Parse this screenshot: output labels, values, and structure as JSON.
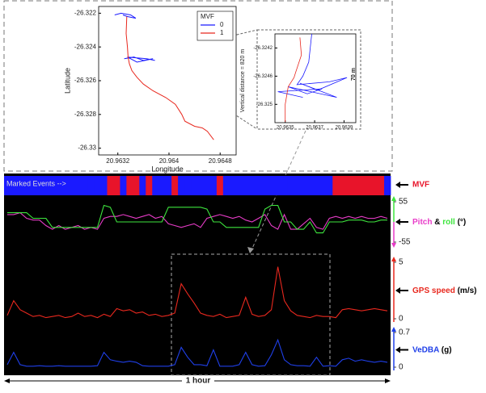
{
  "chart_data": [
    {
      "type": "track",
      "xlabel": "Longitude",
      "ylabel": "Latitude",
      "legend_title": "MVF",
      "xlim": [
        20.9629,
        20.96505
      ],
      "ylim": [
        -26.3304,
        -26.3216
      ],
      "xticks": [
        20.9632,
        20.964,
        20.9648
      ],
      "yticks": [
        -26.322,
        -26.324,
        -26.326,
        -26.328,
        -26.33
      ],
      "annotation": "Vertical distance = 820 m",
      "series": [
        {
          "name": "0",
          "color": "#1a1aff",
          "x": [
            20.96315,
            20.96325,
            20.9634,
            20.96348,
            20.96335,
            20.96328,
            null,
            20.9633,
            20.96345,
            20.9636,
            20.96375,
            20.9635,
            20.96335,
            20.96365,
            20.96378
          ],
          "values": [
            -26.3221,
            -26.322,
            -26.3221,
            -26.3223,
            -26.3222,
            -26.3221,
            null,
            -26.3247,
            -26.3246,
            -26.3248,
            -26.3247,
            -26.3249,
            -26.3246,
            -26.3247,
            -26.3248
          ]
        },
        {
          "name": "1",
          "color": "#e8281e",
          "x": [
            20.96334,
            20.96333,
            20.96335,
            20.96336,
            20.96338,
            20.96342,
            20.9635,
            20.9636,
            20.96375,
            20.96395,
            20.9641,
            20.9642,
            20.96425,
            20.9644,
            20.96452,
            20.9646,
            20.9647
          ],
          "values": [
            -26.3222,
            -26.3232,
            -26.324,
            -26.3246,
            -26.325,
            -26.3254,
            -26.3258,
            -26.3262,
            -26.3266,
            -26.327,
            -26.3274,
            -26.328,
            -26.3284,
            -26.3287,
            -26.3288,
            -26.329,
            -26.3295
          ]
        }
      ]
    },
    {
      "type": "track",
      "xlim": [
        20.96343,
        20.96398
      ],
      "ylim": [
        -26.32526,
        -26.324
      ],
      "xticks": [
        20.9635,
        20.9637,
        20.9639
      ],
      "yticks": [
        -26.3242,
        -26.3246,
        -26.325
      ],
      "annotation": "70 m",
      "series": [
        {
          "name": "0",
          "color": "#1a1aff",
          "x": [
            20.96368,
            20.96366,
            20.96362,
            20.96358,
            20.9638,
            20.96392,
            20.96372,
            20.9636,
            20.96385,
            20.96352,
            20.96365,
            20.96375,
            20.96345,
            20.96362
          ],
          "values": [
            -26.324,
            -26.3244,
            -26.3246,
            -26.32472,
            -26.32468,
            -26.32462,
            -26.3248,
            -26.3247,
            -26.3249,
            -26.32475,
            -26.32485,
            -26.32478,
            -26.32482,
            -26.3249
          ]
        },
        {
          "name": "1",
          "color": "#e8281e",
          "x": [
            20.9636,
            20.96361,
            20.96357,
            20.96356,
            20.96352,
            20.9635,
            20.9635
          ],
          "values": [
            -26.32405,
            -26.3243,
            -26.32455,
            -26.32462,
            -26.32475,
            -26.325,
            -26.32525
          ]
        }
      ]
    },
    {
      "type": "events",
      "label": "MVF",
      "annotation": "Marked Events -->",
      "colors": [
        "#1a1aff",
        "#e8142a"
      ],
      "values": [
        0,
        0,
        0,
        0,
        0,
        0,
        0,
        0,
        0,
        0,
        0,
        0,
        0,
        0,
        0,
        0,
        1,
        1,
        0,
        1,
        1,
        0,
        1,
        0,
        0,
        0,
        1,
        0,
        0,
        0,
        0,
        0,
        0,
        1,
        0,
        0,
        0,
        0,
        0,
        0,
        0,
        0,
        0,
        0,
        0,
        0,
        0,
        0,
        0,
        0,
        0,
        1,
        1,
        1,
        1,
        1,
        1,
        1,
        1,
        0
      ]
    },
    {
      "type": "line",
      "joiner": "&",
      "unit": "(°)",
      "ylim": [
        -55,
        55
      ],
      "yticks": [
        -55,
        55
      ],
      "series": [
        {
          "name": "Pitch",
          "color": "#e83cc8",
          "values": [
            20,
            20,
            25,
            10,
            5,
            5,
            -10,
            -20,
            -10,
            -20,
            -15,
            -10,
            -20,
            -15,
            -20,
            10,
            15,
            15,
            20,
            15,
            10,
            15,
            20,
            10,
            15,
            -5,
            -10,
            -15,
            -10,
            -5,
            -15,
            10,
            15,
            20,
            15,
            10,
            15,
            5,
            0,
            10,
            20,
            -10,
            -20,
            20,
            -20,
            -20,
            -5,
            10,
            -15,
            -20,
            10,
            15,
            10,
            15,
            10,
            15,
            10,
            10,
            15,
            10
          ]
        },
        {
          "name": "roll",
          "color": "#3ee63e",
          "values": [
            25,
            25,
            25,
            25,
            10,
            10,
            10,
            -15,
            -15,
            -15,
            -15,
            -15,
            -15,
            -15,
            -15,
            45,
            40,
            0,
            0,
            0,
            0,
            0,
            0,
            0,
            0,
            40,
            40,
            40,
            40,
            40,
            40,
            35,
            0,
            0,
            -15,
            -15,
            -15,
            -15,
            -15,
            -15,
            35,
            45,
            45,
            0,
            0,
            -20,
            -20,
            0,
            -30,
            -30,
            0,
            0,
            0,
            5,
            5,
            5,
            0,
            0,
            5,
            5
          ]
        }
      ]
    },
    {
      "type": "line",
      "ylabel": "GPS speed",
      "unit": "(m/s)",
      "color": "#e8281e",
      "ylim": [
        0,
        5
      ],
      "yticks": [
        0,
        5
      ],
      "values": [
        0.3,
        1.6,
        0.8,
        0.5,
        0.2,
        0.3,
        0.1,
        0.2,
        0.3,
        0.1,
        0.2,
        0.5,
        0.2,
        0.3,
        0.1,
        0.4,
        0.2,
        0.9,
        0.7,
        0.8,
        0.5,
        0.6,
        0.3,
        0.4,
        0.2,
        0.3,
        0.5,
        3.1,
        2.2,
        1.4,
        0.5,
        0.3,
        0.2,
        0.4,
        0.1,
        0.2,
        0.3,
        1.9,
        0.4,
        0.2,
        0.3,
        0.8,
        4.6,
        1.6,
        0.7,
        0.3,
        0.2,
        0.1,
        0.3,
        0.2,
        0.2,
        0.1,
        0.8,
        0.9,
        0.8,
        0.7,
        0.8,
        0.9,
        0.8,
        0.7
      ]
    },
    {
      "type": "line",
      "ylabel": "VeDBA",
      "unit": "(g)",
      "color": "#1f3fe8",
      "ylim": [
        0,
        0.7
      ],
      "yticks": [
        0,
        0.7
      ],
      "values": [
        0.05,
        0.3,
        0.05,
        0.02,
        0.02,
        0.03,
        0.02,
        0.02,
        0.03,
        0.02,
        0.02,
        0.02,
        0.02,
        0.02,
        0.03,
        0.3,
        0.15,
        0.12,
        0.1,
        0.12,
        0.1,
        0.03,
        0.02,
        0.02,
        0.02,
        0.02,
        0.05,
        0.4,
        0.2,
        0.05,
        0.05,
        0.03,
        0.35,
        0.02,
        0.02,
        0.02,
        0.05,
        0.3,
        0.05,
        0.02,
        0.03,
        0.25,
        0.55,
        0.15,
        0.05,
        0.03,
        0.03,
        0.02,
        0.2,
        0.02,
        0.03,
        0.02,
        0.15,
        0.18,
        0.12,
        0.15,
        0.12,
        0.1,
        0.12,
        0.1
      ]
    }
  ],
  "time_span_label": "1 hour"
}
